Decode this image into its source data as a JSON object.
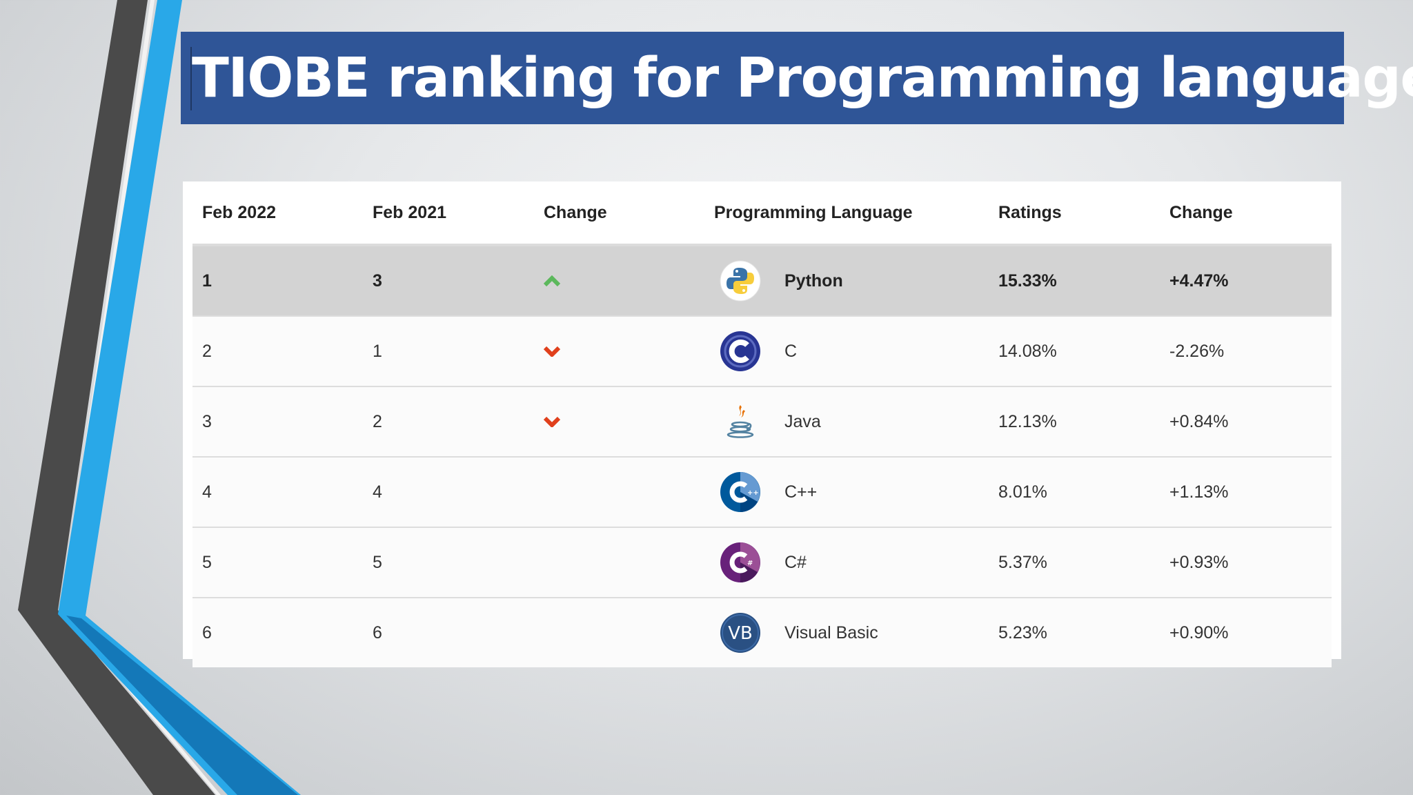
{
  "title": "TIOBE ranking for Programming language",
  "colors": {
    "title_bg": "#2f5597",
    "accent_blue": "#29a8e8",
    "stripe_dark": "#4a4a4a",
    "highlight_row": "#d3d3d3",
    "up_arrow": "#5cb85c",
    "down_arrow": "#e0401c"
  },
  "table": {
    "headers": [
      "Feb 2022",
      "Feb 2021",
      "Change",
      "Programming Language",
      "Ratings",
      "Change"
    ],
    "rows": [
      {
        "rank_2022": "1",
        "rank_2021": "3",
        "change_icon": "arrow-up-icon",
        "logo": "python-logo",
        "language": "Python",
        "rating": "15.33%",
        "change": "+4.47%"
      },
      {
        "rank_2022": "2",
        "rank_2021": "1",
        "change_icon": "arrow-down-icon",
        "logo": "c-logo",
        "language": "C",
        "rating": "14.08%",
        "change": "-2.26%"
      },
      {
        "rank_2022": "3",
        "rank_2021": "2",
        "change_icon": "arrow-down-icon",
        "logo": "java-logo",
        "language": "Java",
        "rating": "12.13%",
        "change": "+0.84%"
      },
      {
        "rank_2022": "4",
        "rank_2021": "4",
        "change_icon": "",
        "logo": "cpp-logo",
        "language": "C++",
        "rating": "8.01%",
        "change": "+1.13%"
      },
      {
        "rank_2022": "5",
        "rank_2021": "5",
        "change_icon": "",
        "logo": "csharp-logo",
        "language": "C#",
        "rating": "5.37%",
        "change": "+0.93%"
      },
      {
        "rank_2022": "6",
        "rank_2021": "6",
        "change_icon": "",
        "logo": "vb-logo",
        "language": "Visual Basic",
        "rating": "5.23%",
        "change": "+0.90%"
      }
    ]
  }
}
